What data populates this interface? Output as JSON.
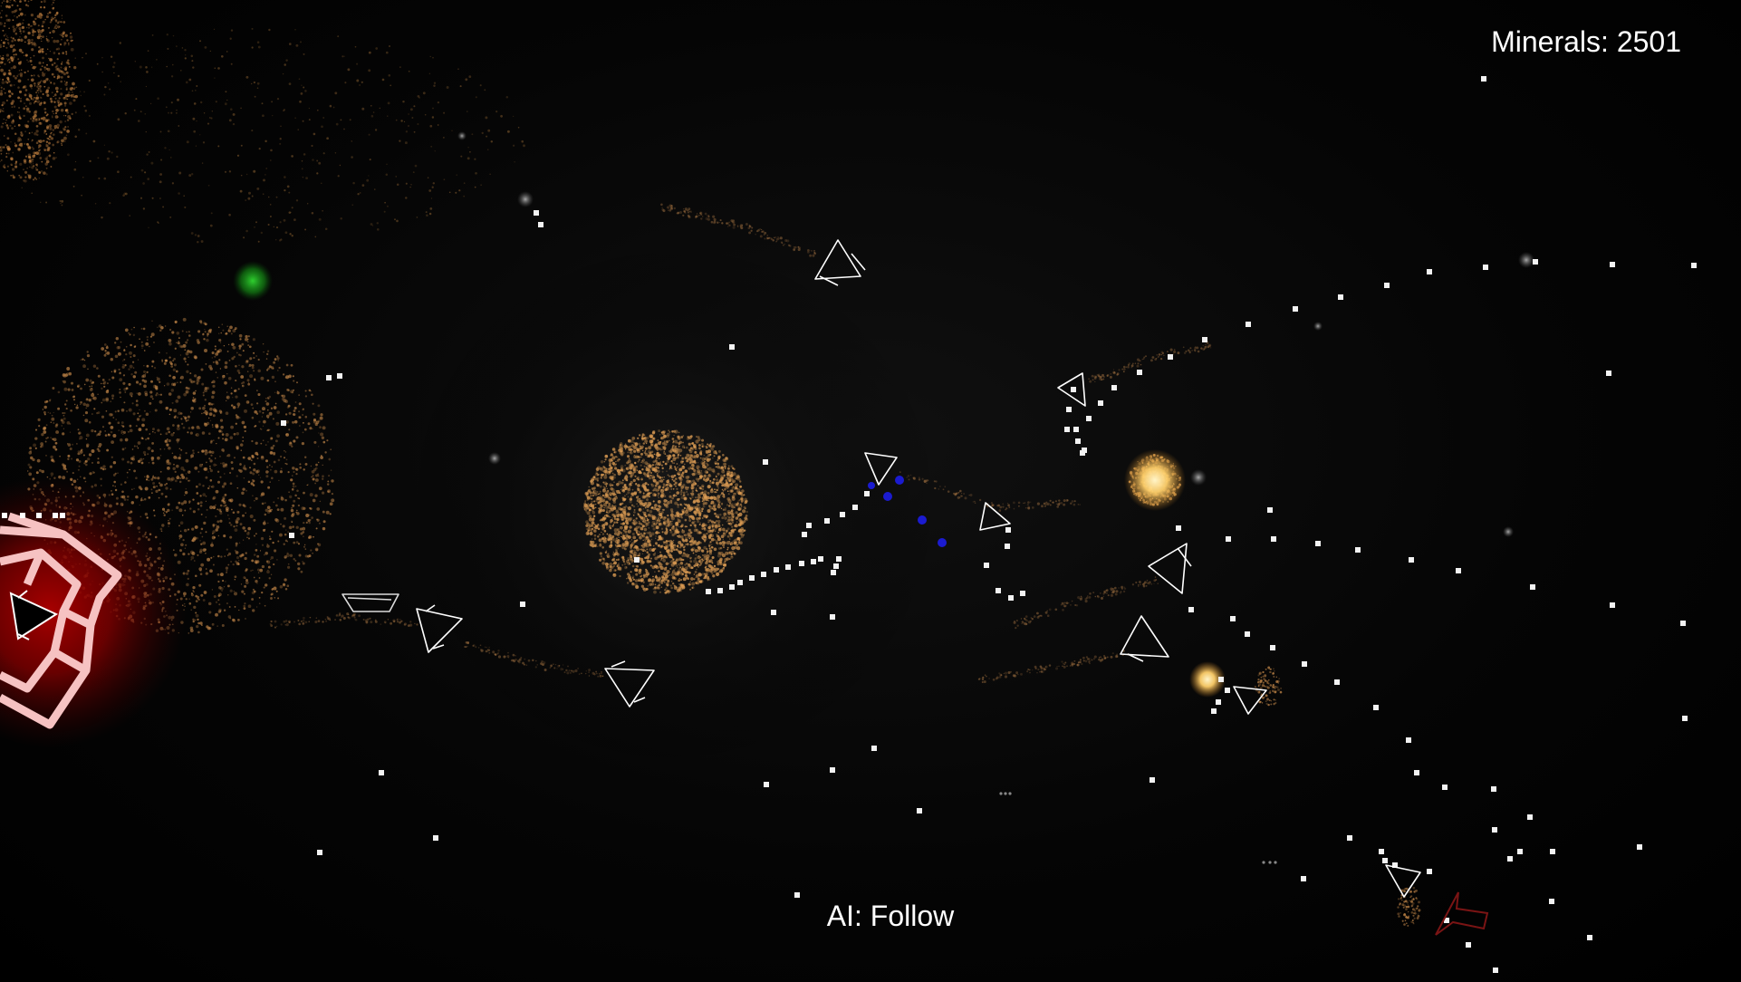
{
  "hud": {
    "minerals_label": "Minerals: 2501",
    "ai_mode_label": "AI: Follow"
  },
  "colors": {
    "background": "#000000",
    "ship_outline": "#ffffff",
    "mineral": "#ffffff",
    "nebula_orange": "#d4924a",
    "base_glow_red": "#8a0000",
    "base_outline": "#f4b8b8",
    "green_orb": "#1aa31a",
    "blue_particle": "#1a1ac8",
    "enemy_marker": "#8c1a1a",
    "explosion_yellow": "#ffd27a"
  },
  "icons": [
    "player-ship-icon",
    "enemy-ship-icon",
    "mineral-icon",
    "home-base-icon",
    "direction-arrow-icon"
  ]
}
